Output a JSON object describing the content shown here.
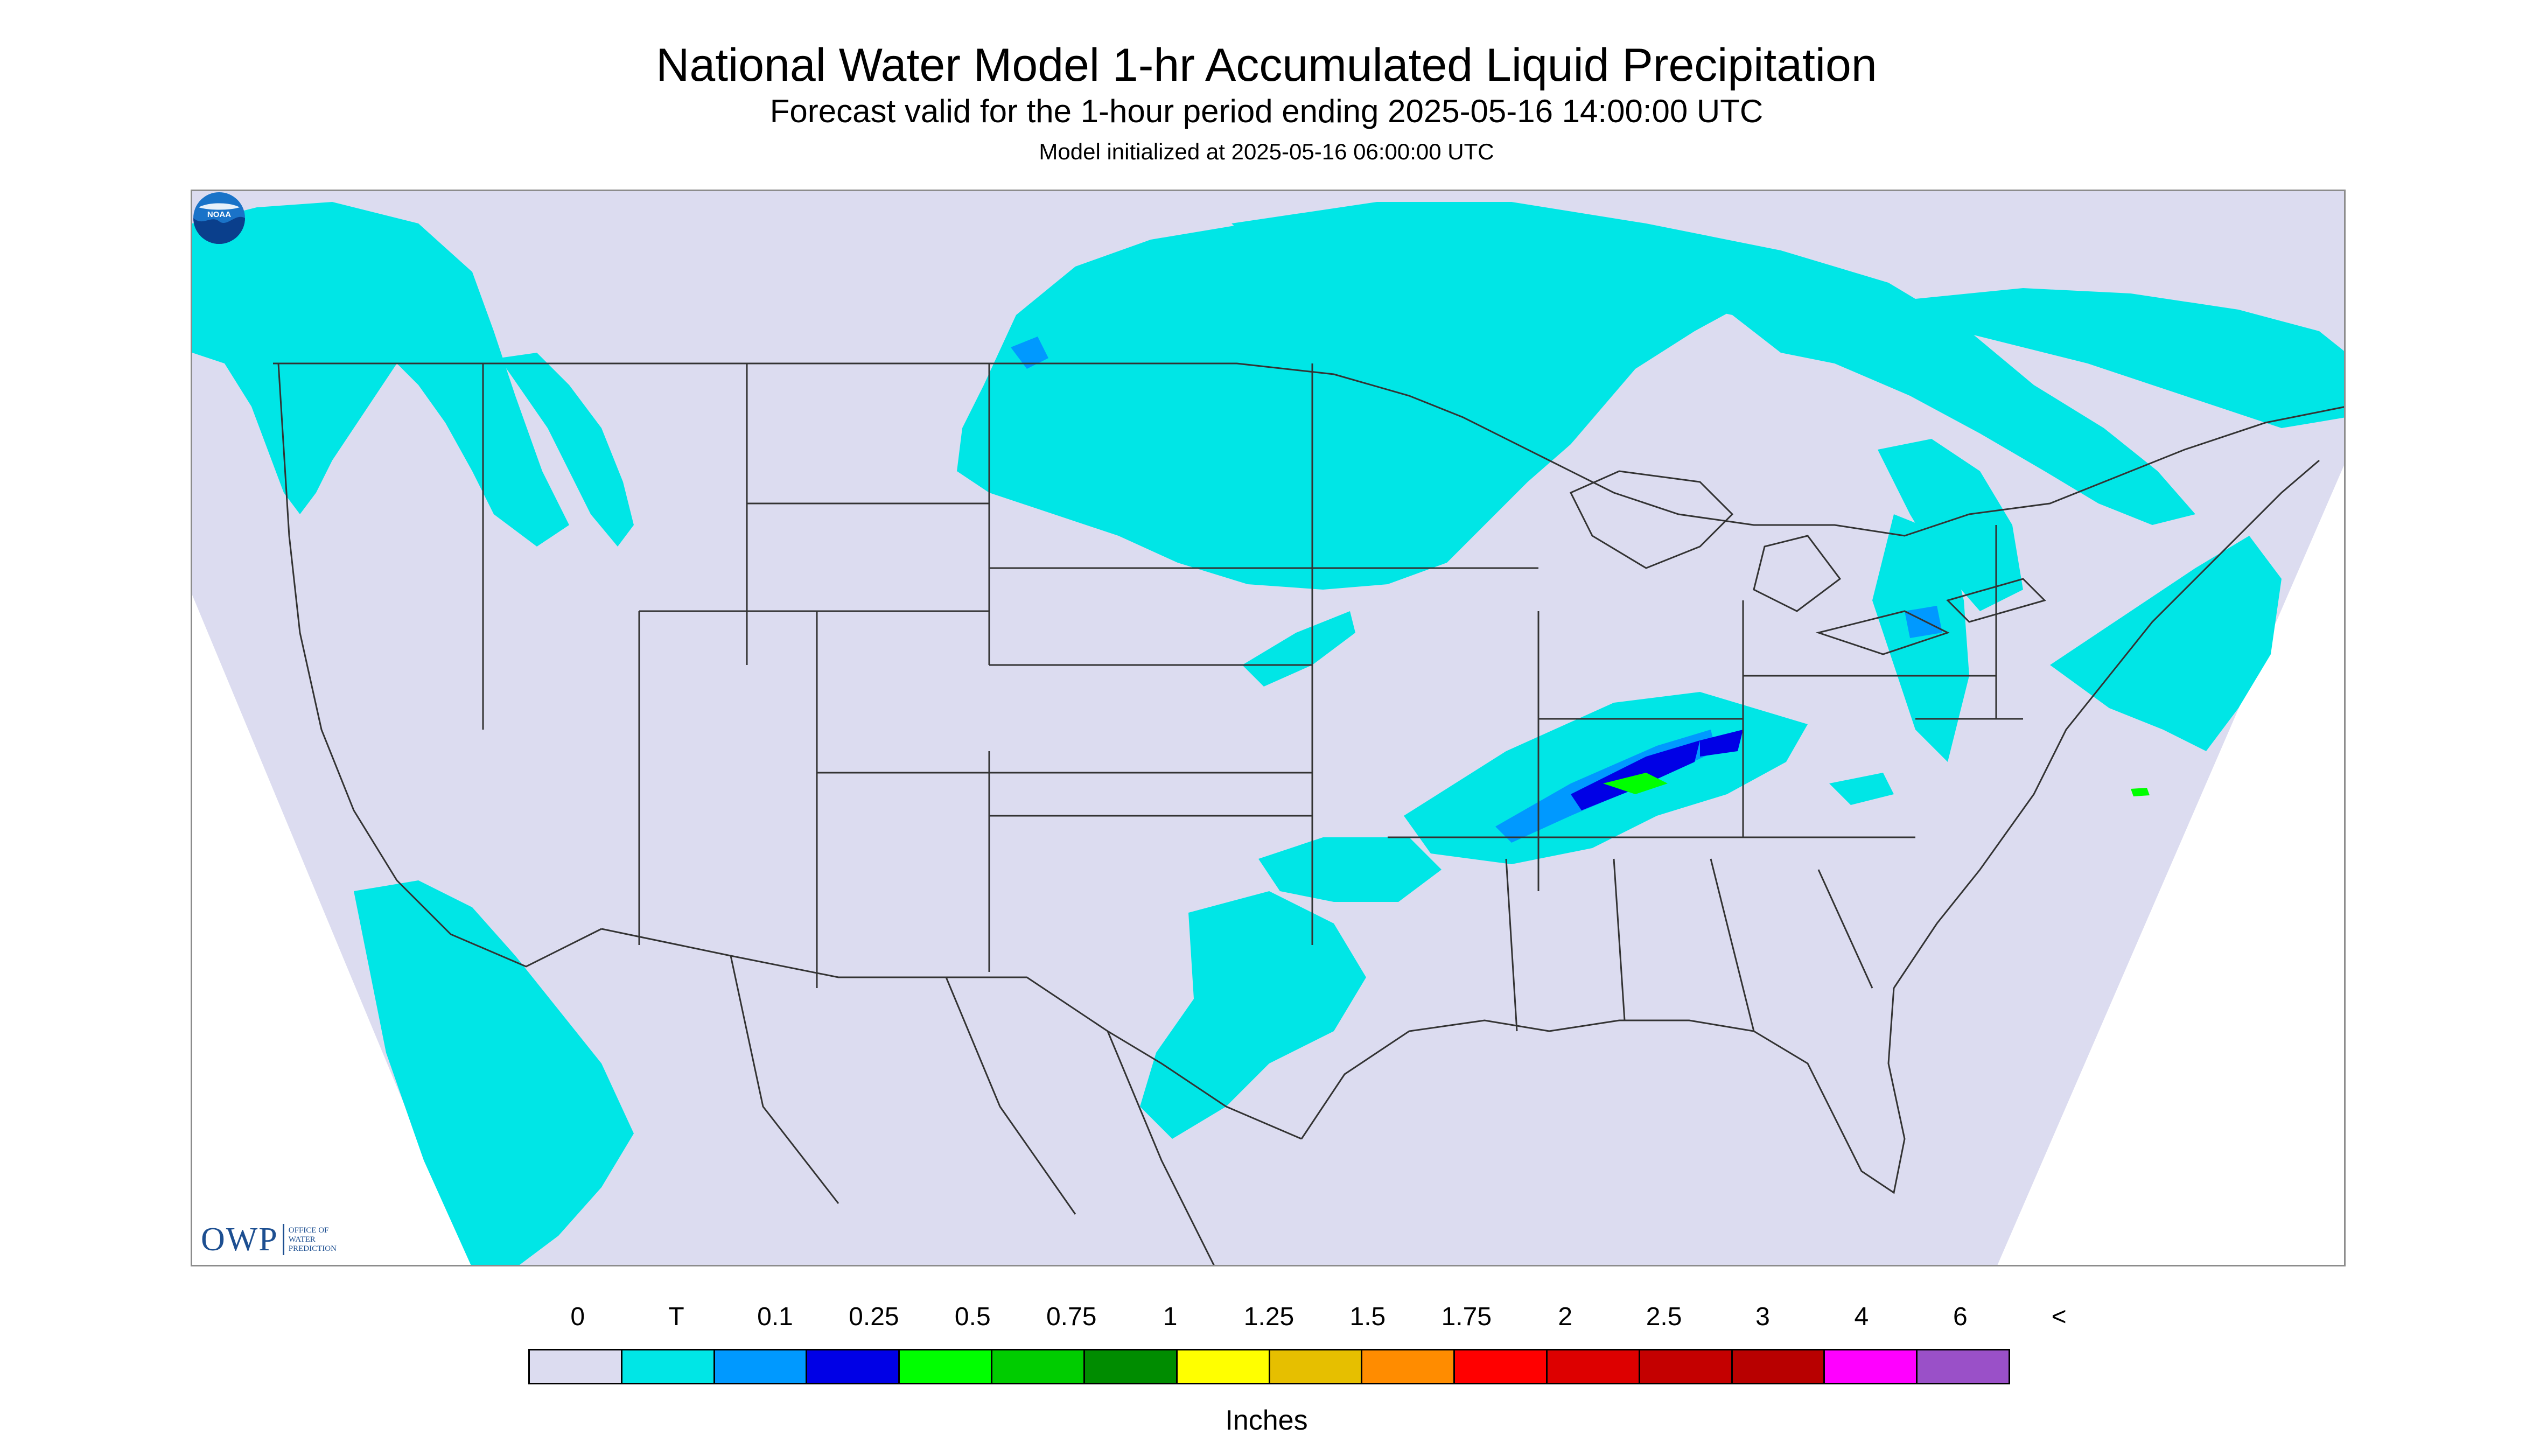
{
  "title": "National Water Model 1-hr Accumulated Liquid Precipitation",
  "subtitle": "Forecast valid for the 1-hour period ending 2025-05-16 14:00:00 UTC",
  "init_line": "Model initialized at 2025-05-16 06:00:00 UTC",
  "logos": {
    "owp": {
      "mark": "OWP",
      "lines": [
        "OFFICE OF",
        "WATER",
        "PREDICTION"
      ]
    },
    "noaa": {
      "text": "NOAA"
    }
  },
  "colors": {
    "domain_background": "#dcdcf0",
    "outside_domain": "#ffffff",
    "boundary_lines": "#333333",
    "trace": "#00e6e6",
    "light_rain": "#0099ff",
    "moderate_rain": "#0000e6",
    "heavy_rain": "#00ff00"
  },
  "legend": {
    "labels": [
      "0",
      "T",
      "0.1",
      "0.25",
      "0.5",
      "0.75",
      "1",
      "1.25",
      "1.5",
      "1.75",
      "2",
      "2.5",
      "3",
      "4",
      "6",
      "<"
    ],
    "colors": [
      "#dcdcf0",
      "#00e6e6",
      "#0099ff",
      "#0000e6",
      "#00ff00",
      "#00cc00",
      "#008c00",
      "#ffff00",
      "#e6bf00",
      "#ff8c00",
      "#ff0000",
      "#dd0000",
      "#c40000",
      "#b80000",
      "#ff00ff",
      "#9a50c8"
    ],
    "units": "Inches"
  }
}
